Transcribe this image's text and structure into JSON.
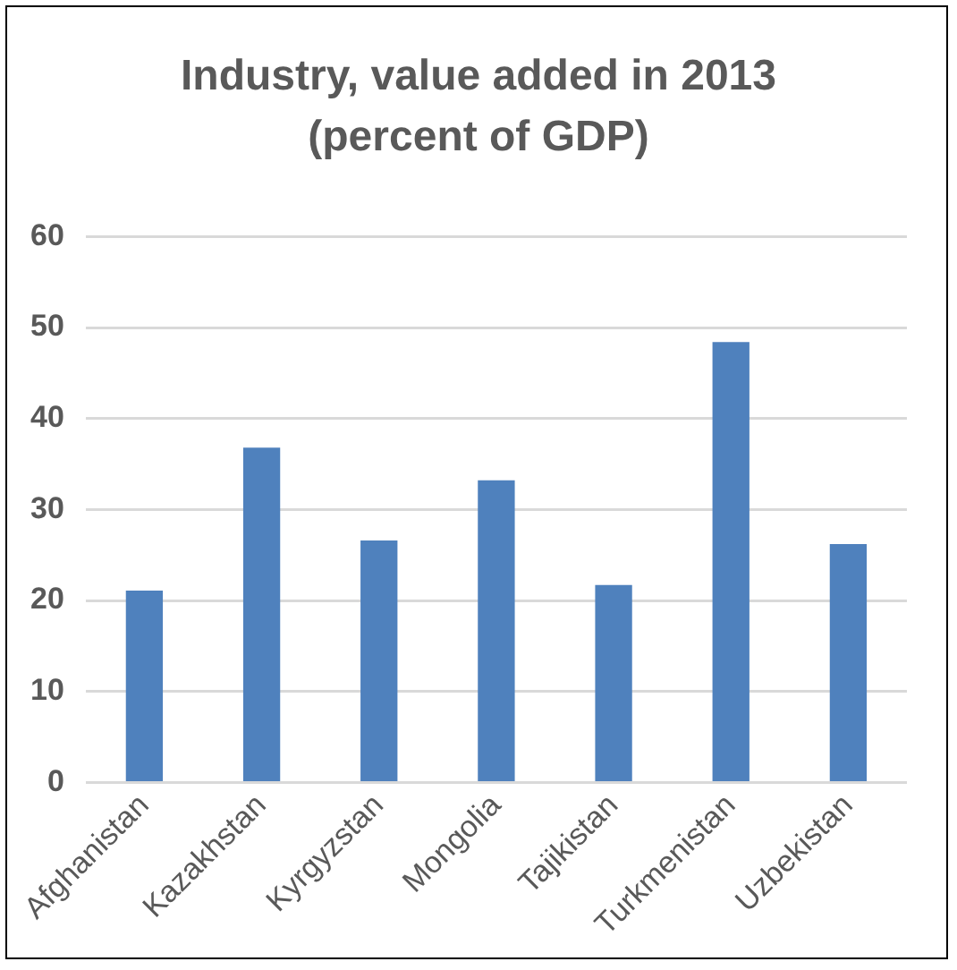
{
  "chart_data": {
    "type": "bar",
    "title": "Industry, value added in 2013 (percent of GDP)",
    "categories": [
      "Afghanistan",
      "Kazakhstan",
      "Kyrgyzstan",
      "Mongolia",
      "Tajikistan",
      "Turkmenistan",
      "Uzbekistan"
    ],
    "values": [
      21.1,
      36.8,
      26.6,
      33.2,
      21.7,
      48.4,
      26.2
    ],
    "color": "#4f81bd",
    "ylim": [
      0,
      60
    ],
    "yticks": [
      0,
      10,
      20,
      30,
      40,
      50,
      60
    ],
    "grid": "y"
  }
}
